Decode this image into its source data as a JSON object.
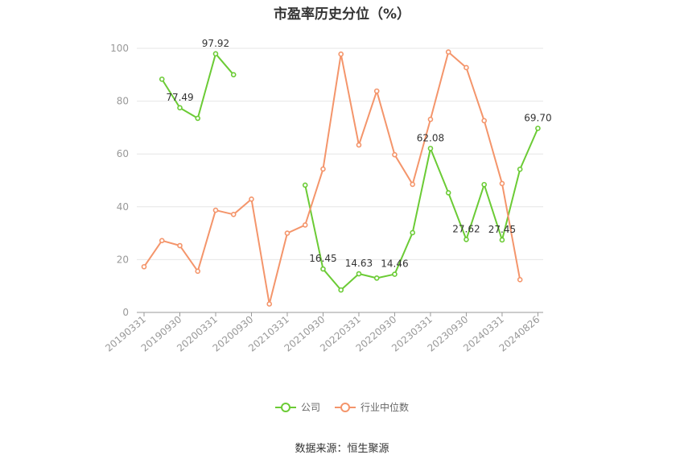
{
  "title": "市盈率历史分位（%）",
  "source": "数据来源：恒生聚源",
  "colors": {
    "company": "#6bcb35",
    "industry": "#f4956b",
    "axis": "#999999",
    "grid": "#e6e6e6"
  },
  "chart_data": {
    "type": "line",
    "ylim": [
      0,
      100
    ],
    "yticks": [
      "0",
      "20",
      "40",
      "60",
      "80",
      "100"
    ],
    "x": [
      "20190331",
      "20190630",
      "20190930",
      "20191231",
      "20200331",
      "20200630",
      "20200930",
      "20201231",
      "20210331",
      "20210630",
      "20210930",
      "20211231",
      "20220331",
      "20220630",
      "20220930",
      "20221231",
      "20230331",
      "20230630",
      "20230930",
      "20231231",
      "20240331",
      "20240630",
      "20240826"
    ],
    "xtick_labels": [
      "20190331",
      "20190930",
      "20200331",
      "20200930",
      "20210331",
      "20210930",
      "20220331",
      "20220930",
      "20230331",
      "20230930",
      "20240331",
      "20240826"
    ],
    "grid": true,
    "legend_position": "bottom",
    "series": [
      {
        "name": "公司",
        "color": "#6bcb35",
        "values": [
          null,
          88.3,
          77.49,
          73.5,
          97.92,
          90.0,
          null,
          null,
          null,
          48.2,
          16.45,
          8.5,
          14.63,
          13.0,
          14.46,
          30.2,
          62.08,
          45.3,
          27.62,
          48.4,
          27.45,
          54.2,
          69.7
        ],
        "labels": [
          {
            "index": 2,
            "text": "77.49"
          },
          {
            "index": 4,
            "text": "97.92"
          },
          {
            "index": 10,
            "text": "16.45"
          },
          {
            "index": 12,
            "text": "14.63"
          },
          {
            "index": 14,
            "text": "14.46"
          },
          {
            "index": 16,
            "text": "62.08"
          },
          {
            "index": 18,
            "text": "27.62"
          },
          {
            "index": 20,
            "text": "27.45"
          },
          {
            "index": 22,
            "text": "69.70"
          }
        ]
      },
      {
        "name": "行业中位数",
        "color": "#f4956b",
        "values": [
          17.3,
          27.2,
          25.3,
          15.6,
          38.7,
          37.1,
          42.9,
          3.2,
          30.0,
          33.1,
          54.3,
          97.8,
          63.4,
          83.8,
          59.7,
          48.5,
          73.1,
          98.6,
          92.7,
          72.6,
          48.8,
          12.4,
          null
        ]
      }
    ]
  }
}
